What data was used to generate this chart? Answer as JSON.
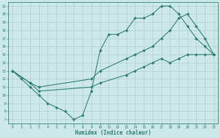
{
  "xlabel": "Humidex (Indice chaleur)",
  "bg_color": "#cde8ea",
  "grid_color": "#aecdd0",
  "line_color": "#2d7d6e",
  "xlim": [
    -0.5,
    23.5
  ],
  "ylim": [
    6.5,
    21.5
  ],
  "xticks": [
    0,
    1,
    2,
    3,
    4,
    5,
    6,
    7,
    8,
    9,
    10,
    11,
    12,
    13,
    14,
    15,
    16,
    17,
    18,
    19,
    20,
    21,
    22,
    23
  ],
  "yticks": [
    7,
    8,
    9,
    10,
    11,
    12,
    13,
    14,
    15,
    16,
    17,
    18,
    19,
    20,
    21
  ],
  "line1_x": [
    0,
    1,
    2,
    3,
    4,
    5,
    6,
    7,
    8,
    9,
    10,
    11,
    12,
    13,
    14,
    15,
    16,
    17,
    18,
    19,
    20,
    21,
    22,
    23
  ],
  "line1_y": [
    13,
    12,
    11,
    10,
    9,
    8.5,
    8,
    7,
    7.5,
    10.5,
    15.5,
    17.5,
    17.5,
    18,
    19.5,
    19.5,
    20,
    21,
    21,
    20,
    18.5,
    17,
    16,
    15
  ],
  "line2_x": [
    0,
    2,
    3,
    9,
    10,
    13,
    14,
    15,
    16,
    17,
    18,
    19,
    20,
    21,
    22,
    23
  ],
  "line2_y": [
    13,
    11.5,
    11,
    12,
    13,
    14.5,
    15,
    15.5,
    16,
    17,
    18,
    19.5,
    20,
    18.5,
    17,
    15
  ],
  "line3_x": [
    0,
    2,
    3,
    9,
    10,
    13,
    14,
    15,
    16,
    17,
    18,
    19,
    20,
    21,
    22,
    23
  ],
  "line3_y": [
    13,
    11.5,
    10.5,
    11,
    11.5,
    12.5,
    13,
    13.5,
    14,
    14.5,
    14,
    14.5,
    15,
    15,
    15,
    15
  ]
}
